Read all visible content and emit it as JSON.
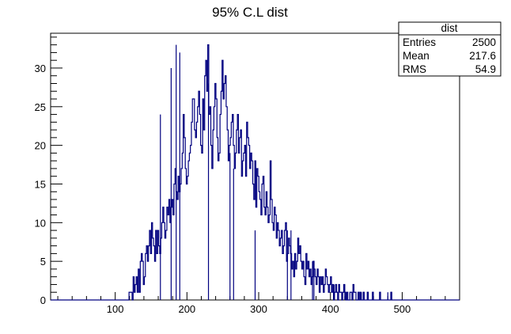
{
  "chart_data": {
    "type": "histogram",
    "title": "95% C.L dist",
    "xlabel": "",
    "ylabel": "",
    "xlim": [
      10,
      580
    ],
    "ylim": [
      0,
      34.5
    ],
    "x_ticks": [
      100,
      200,
      300,
      400,
      500
    ],
    "y_ticks": [
      0,
      5,
      10,
      15,
      20,
      25,
      30
    ],
    "line_color": "#00007f",
    "grid": false,
    "stats_box": {
      "name": "dist",
      "entries_label": "Entries",
      "entries": "2500",
      "mean_label": "Mean",
      "mean": "217.6",
      "rms_label": "RMS",
      "rms": "54.9"
    },
    "bins": {
      "x_start": 115,
      "bin_width": 1.425,
      "counts": [
        0,
        0,
        0,
        1,
        1,
        1,
        0,
        3,
        1,
        2,
        3,
        1,
        4,
        1,
        5,
        6,
        5,
        2,
        3,
        6,
        7,
        5,
        7,
        9,
        6,
        10,
        8,
        7,
        5,
        9,
        6,
        9,
        7,
        6,
        8,
        10,
        12,
        10,
        8,
        9,
        12,
        11,
        13,
        10,
        12,
        13,
        11,
        15,
        17,
        14,
        13,
        16,
        14,
        15,
        17,
        19,
        24,
        21,
        17,
        15,
        16,
        18,
        19,
        20,
        23,
        26,
        26,
        22,
        21,
        23,
        25,
        27,
        24,
        20,
        19,
        26,
        22,
        29,
        31,
        27,
        33,
        24,
        25,
        20,
        17,
        22,
        25,
        28,
        26,
        21,
        18,
        19,
        24,
        27,
        31,
        26,
        28,
        29,
        25,
        22,
        18,
        20,
        21,
        23,
        24,
        20,
        17,
        19,
        22,
        24,
        19,
        21,
        22,
        16,
        18,
        19,
        20,
        16,
        23,
        21,
        20,
        17,
        19,
        18,
        15,
        13,
        18,
        12,
        17,
        16,
        14,
        13,
        11,
        15,
        16,
        12,
        11,
        14,
        12,
        10,
        11,
        18,
        13,
        10,
        9,
        12,
        11,
        8,
        10,
        9,
        7,
        8,
        9,
        6,
        7,
        9,
        10,
        5,
        6,
        8,
        7,
        6,
        4,
        5,
        3,
        6,
        4,
        5,
        8,
        6,
        7,
        5,
        4,
        5,
        3,
        2,
        6,
        4,
        5,
        3,
        4,
        2,
        3,
        5,
        4,
        3,
        2,
        4,
        3,
        1,
        3,
        2,
        3,
        1,
        2,
        4,
        3,
        2,
        1,
        2,
        3,
        1,
        2,
        0,
        1,
        2,
        1,
        0,
        2,
        1,
        1,
        0,
        1,
        2,
        1,
        0,
        1,
        0,
        0,
        1,
        1,
        0,
        2,
        1,
        1,
        0,
        0,
        1,
        0,
        1,
        0,
        0,
        1,
        0,
        0,
        0,
        1,
        0,
        0,
        0,
        0,
        1,
        0,
        0,
        0,
        0,
        0,
        0,
        1,
        0,
        0,
        0,
        0,
        0,
        0,
        0,
        0,
        0,
        0,
        1
      ]
    },
    "overlay_spikes": [
      {
        "x": 185,
        "value": 33
      },
      {
        "x": 190,
        "value": 32
      },
      {
        "x": 163,
        "value": 24
      },
      {
        "x": 178,
        "value": 30
      },
      {
        "x": 230,
        "value": 28
      },
      {
        "x": 260,
        "value": 19
      },
      {
        "x": 265,
        "value": 17
      },
      {
        "x": 295,
        "value": 9
      },
      {
        "x": 340,
        "value": 9
      },
      {
        "x": 345,
        "value": 9
      },
      {
        "x": 375,
        "value": 5
      },
      {
        "x": 377,
        "value": 5
      },
      {
        "x": 405,
        "value": 2
      },
      {
        "x": 420,
        "value": 2
      },
      {
        "x": 440,
        "value": 1
      },
      {
        "x": 443,
        "value": 1
      },
      {
        "x": 480,
        "value": 1
      }
    ]
  }
}
